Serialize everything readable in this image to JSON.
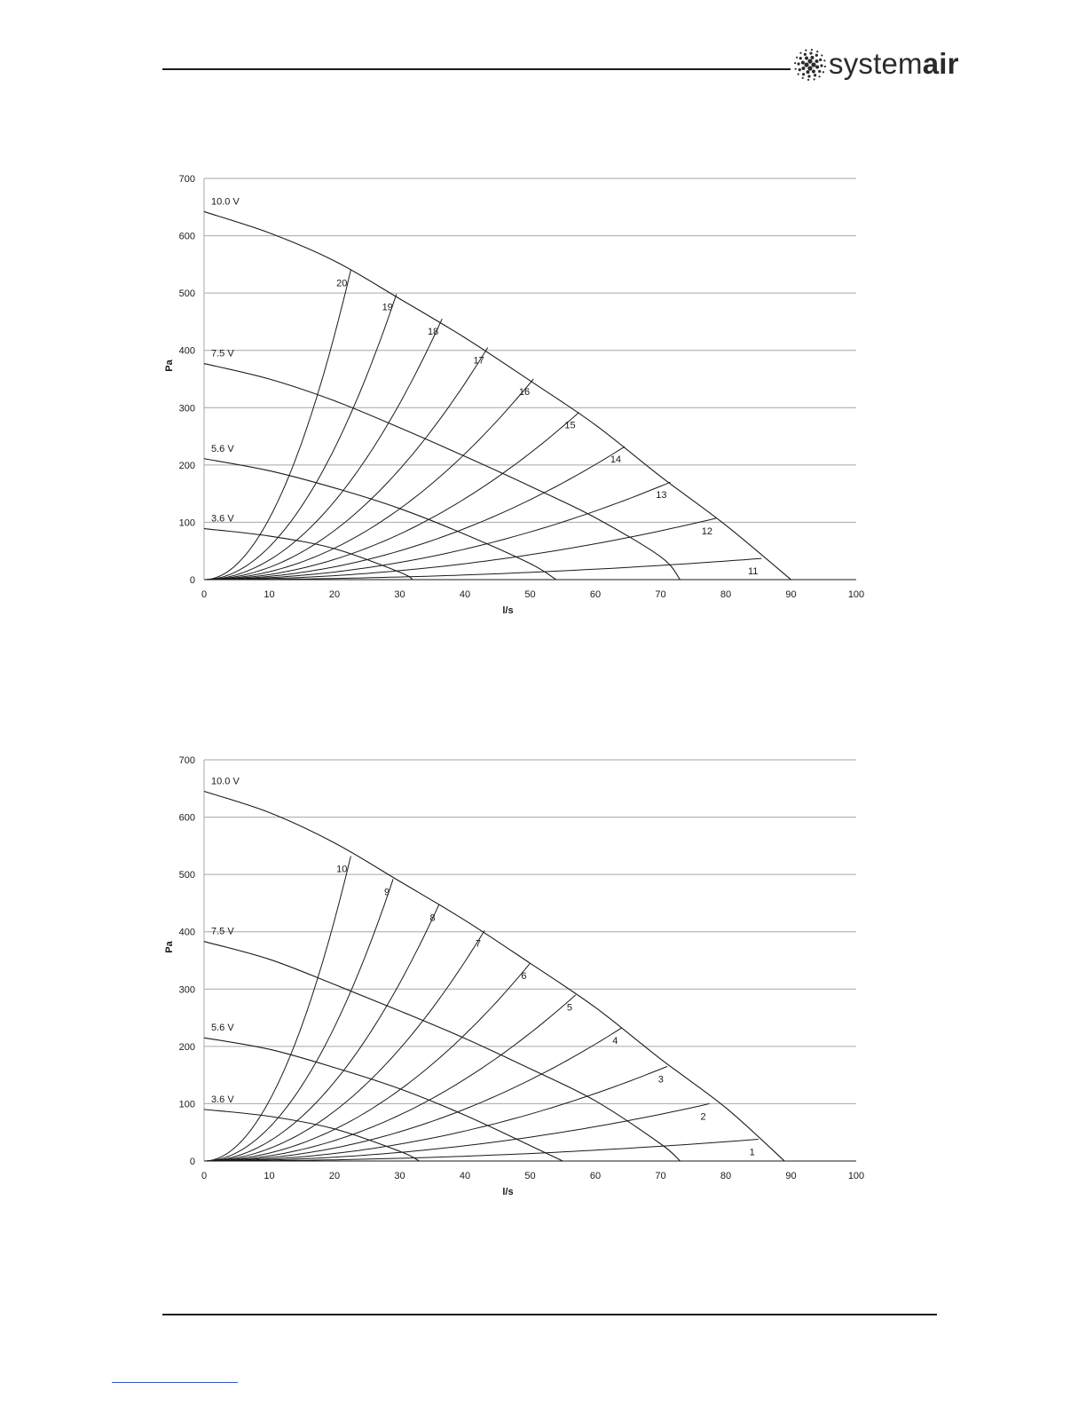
{
  "header": {
    "logo": {
      "icon": "systemair-dot-logo-icon",
      "text_prefix": "system",
      "text_bold": "air"
    }
  },
  "colors": {
    "line": "#1a1a1a",
    "grid": "#a6a6a6",
    "text": "#1a1a1a",
    "link": "#3355cc"
  },
  "chart_data": [
    {
      "type": "line",
      "xlabel": "l/s",
      "ylabel": "Pa",
      "xlim": [
        0,
        100
      ],
      "ylim": [
        0,
        700
      ],
      "x_ticks": [
        0,
        10,
        20,
        30,
        40,
        50,
        60,
        70,
        80,
        90,
        100
      ],
      "y_ticks": [
        0,
        100,
        200,
        300,
        400,
        500,
        600,
        700
      ],
      "grid": "horizontal",
      "fan_curves": [
        {
          "label": "10.0 V",
          "points": [
            [
              0,
              642
            ],
            [
              10,
              605
            ],
            [
              20,
              556
            ],
            [
              30,
              490
            ],
            [
              40,
              422
            ],
            [
              50,
              347
            ],
            [
              60,
              270
            ],
            [
              70,
              180
            ],
            [
              80,
              95
            ],
            [
              90,
              0
            ]
          ]
        },
        {
          "label": "7.5 V",
          "points": [
            [
              0,
              377
            ],
            [
              10,
              350
            ],
            [
              20,
              312
            ],
            [
              30,
              265
            ],
            [
              40,
              215
            ],
            [
              50,
              163
            ],
            [
              60,
              108
            ],
            [
              70,
              40
            ],
            [
              73,
              0
            ]
          ]
        },
        {
          "label": "5.6 V",
          "points": [
            [
              0,
              211
            ],
            [
              10,
              190
            ],
            [
              20,
              160
            ],
            [
              30,
              124
            ],
            [
              40,
              79
            ],
            [
              50,
              28
            ],
            [
              54,
              0
            ]
          ]
        },
        {
          "label": "3.6 V",
          "points": [
            [
              0,
              89
            ],
            [
              10,
              76
            ],
            [
              20,
              54
            ],
            [
              30,
              13
            ],
            [
              32,
              0
            ]
          ]
        }
      ],
      "system_curves": [
        {
          "label": "20",
          "end": [
            22.5,
            540
          ]
        },
        {
          "label": "19",
          "end": [
            29.5,
            498
          ]
        },
        {
          "label": "18",
          "end": [
            36.5,
            455
          ]
        },
        {
          "label": "17",
          "end": [
            43.5,
            405
          ]
        },
        {
          "label": "16",
          "end": [
            50.5,
            350
          ]
        },
        {
          "label": "15",
          "end": [
            57.5,
            292
          ]
        },
        {
          "label": "14",
          "end": [
            64.5,
            232
          ]
        },
        {
          "label": "13",
          "end": [
            71.5,
            170
          ]
        },
        {
          "label": "12",
          "end": [
            78.5,
            107
          ]
        },
        {
          "label": "11",
          "end": [
            85.5,
            37
          ]
        }
      ]
    },
    {
      "type": "line",
      "xlabel": "l/s",
      "ylabel": "Pa",
      "xlim": [
        0,
        100
      ],
      "ylim": [
        0,
        700
      ],
      "x_ticks": [
        0,
        10,
        20,
        30,
        40,
        50,
        60,
        70,
        80,
        90,
        100
      ],
      "y_ticks": [
        0,
        100,
        200,
        300,
        400,
        500,
        600,
        700
      ],
      "grid": "horizontal",
      "fan_curves": [
        {
          "label": "10.0 V",
          "points": [
            [
              0,
              645
            ],
            [
              10,
              608
            ],
            [
              20,
              555
            ],
            [
              30,
              488
            ],
            [
              40,
              420
            ],
            [
              50,
              345
            ],
            [
              60,
              268
            ],
            [
              70,
              178
            ],
            [
              80,
              93
            ],
            [
              89,
              0
            ]
          ]
        },
        {
          "label": "7.5 V",
          "points": [
            [
              0,
              383
            ],
            [
              10,
              352
            ],
            [
              20,
              308
            ],
            [
              30,
              262
            ],
            [
              40,
              214
            ],
            [
              50,
              161
            ],
            [
              60,
              105
            ],
            [
              70,
              30
            ],
            [
              73,
              0
            ]
          ]
        },
        {
          "label": "5.6 V",
          "points": [
            [
              0,
              215
            ],
            [
              10,
              195
            ],
            [
              20,
              163
            ],
            [
              30,
              126
            ],
            [
              40,
              80
            ],
            [
              50,
              27
            ],
            [
              55,
              0
            ]
          ]
        },
        {
          "label": "3.6 V",
          "points": [
            [
              0,
              90
            ],
            [
              10,
              78
            ],
            [
              20,
              56
            ],
            [
              30,
              17
            ],
            [
              33,
              0
            ]
          ]
        }
      ],
      "system_curves": [
        {
          "label": "10",
          "end": [
            22.5,
            532
          ]
        },
        {
          "label": "9",
          "end": [
            29.0,
            492
          ]
        },
        {
          "label": "8",
          "end": [
            36.0,
            447
          ]
        },
        {
          "label": "7",
          "end": [
            43.0,
            402
          ]
        },
        {
          "label": "6",
          "end": [
            50.0,
            345
          ]
        },
        {
          "label": "5",
          "end": [
            57.0,
            290
          ]
        },
        {
          "label": "4",
          "end": [
            64.0,
            232
          ]
        },
        {
          "label": "3",
          "end": [
            71.0,
            165
          ]
        },
        {
          "label": "2",
          "end": [
            77.5,
            100
          ]
        },
        {
          "label": "1",
          "end": [
            85.0,
            38
          ]
        }
      ]
    }
  ]
}
